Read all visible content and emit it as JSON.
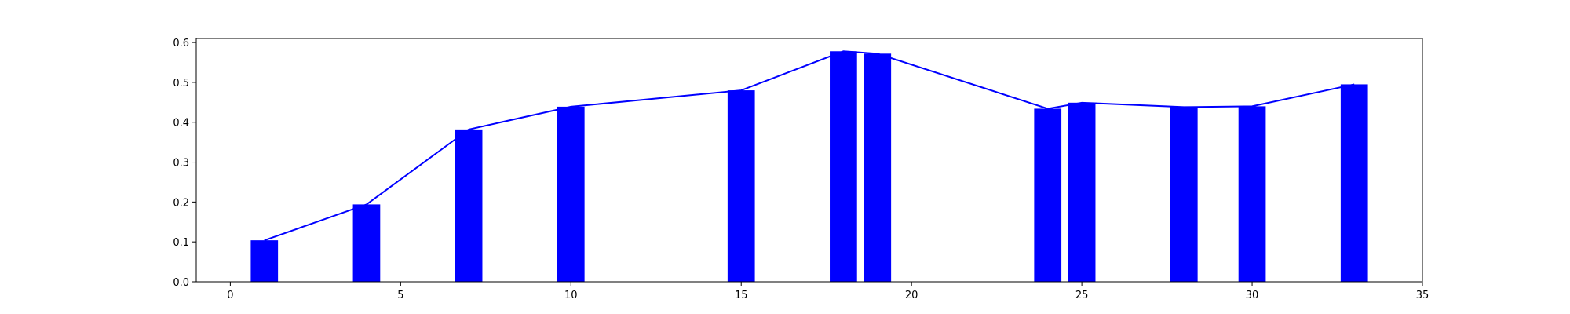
{
  "chart_data": {
    "type": "bar",
    "title": "",
    "xlabel": "",
    "ylabel": "",
    "xlim": [
      -1,
      35
    ],
    "ylim": [
      0,
      0.61
    ],
    "xticks": [
      "0",
      "5",
      "10",
      "15",
      "20",
      "25",
      "30",
      "35"
    ],
    "yticks": [
      "0.0",
      "0.1",
      "0.2",
      "0.3",
      "0.4",
      "0.5",
      "0.6"
    ],
    "grid": false,
    "legend": "none",
    "bar_width": 0.8,
    "color": "#0000ff",
    "series": [
      {
        "type": "bar",
        "x": [
          1,
          4,
          7,
          10,
          15,
          18,
          19,
          24,
          25,
          28,
          30,
          33
        ],
        "values": [
          0.104,
          0.194,
          0.382,
          0.439,
          0.48,
          0.578,
          0.572,
          0.434,
          0.449,
          0.438,
          0.44,
          0.495
        ]
      },
      {
        "type": "line",
        "x": [
          1,
          4,
          7,
          10,
          15,
          18,
          19,
          24,
          25,
          28,
          30,
          33
        ],
        "values": [
          0.104,
          0.194,
          0.382,
          0.439,
          0.48,
          0.578,
          0.572,
          0.434,
          0.449,
          0.438,
          0.44,
          0.495
        ]
      }
    ]
  }
}
